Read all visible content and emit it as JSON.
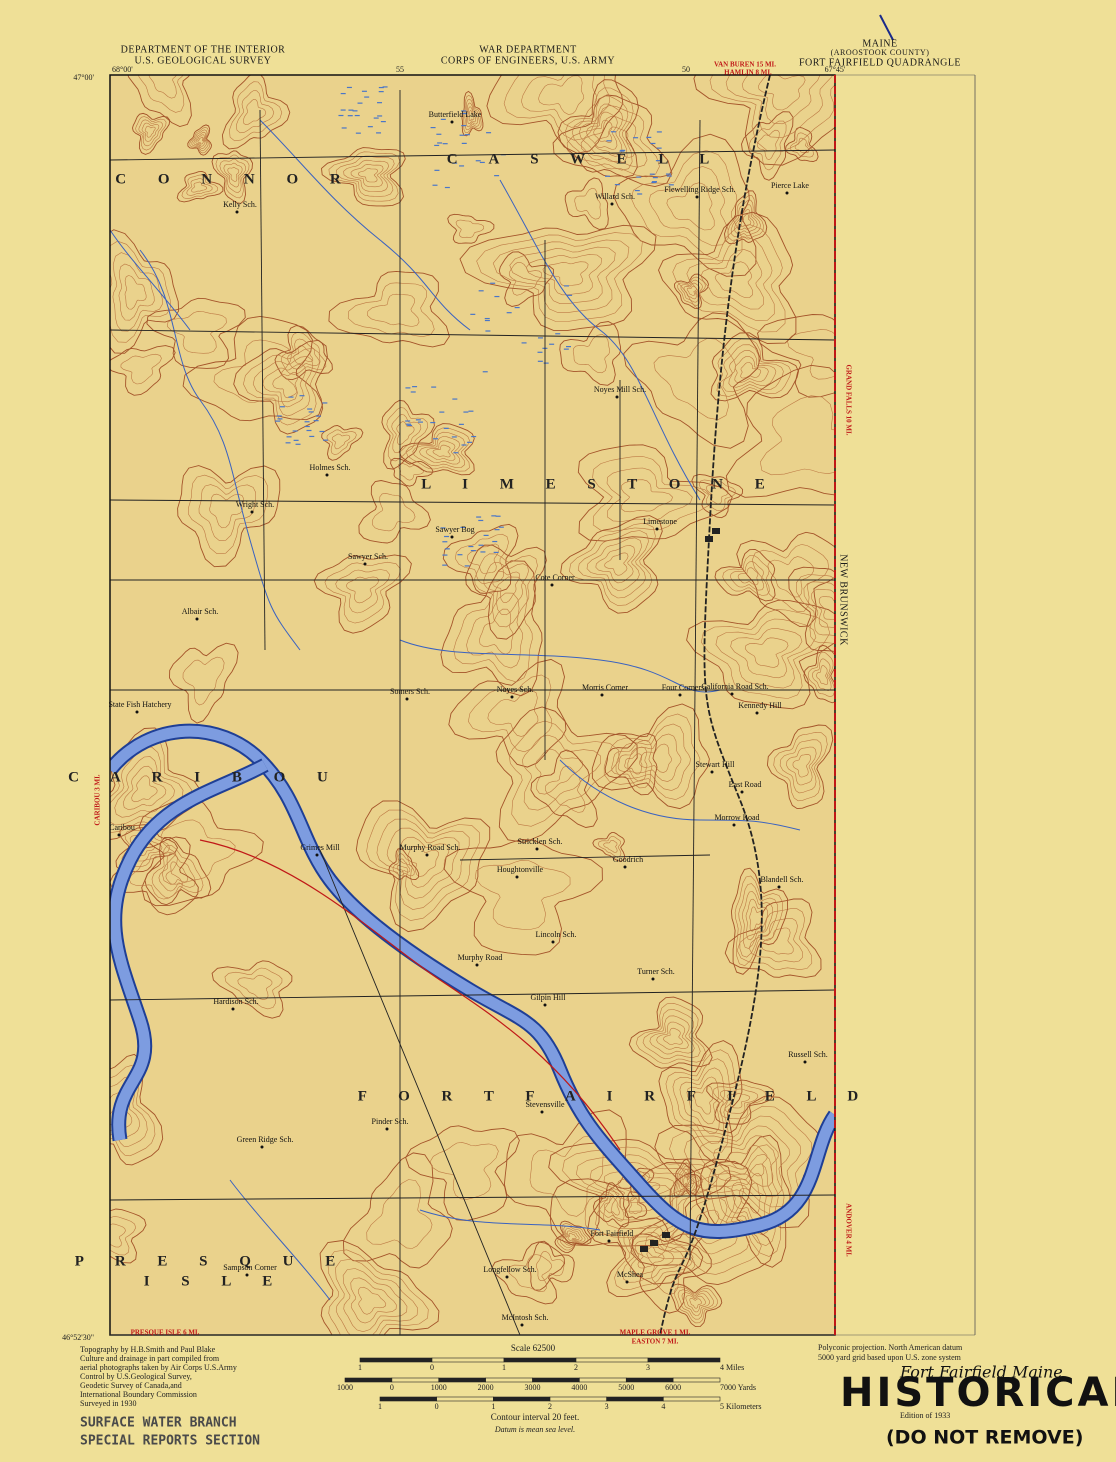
{
  "header": {
    "left": [
      "DEPARTMENT OF THE INTERIOR",
      "U.S. GEOLOGICAL SURVEY"
    ],
    "center": [
      "WAR DEPARTMENT",
      "CORPS OF ENGINEERS, U.S. ARMY"
    ],
    "right": [
      "MAINE",
      "(AROOSTOOK COUNTY)",
      "FORT FAIRFIELD QUADRANGLE"
    ]
  },
  "corners": [
    "68°00'",
    "47°00'",
    "67°45'",
    "46°52'30\"",
    "55",
    "50"
  ],
  "townships": [
    "C O N N O R",
    "C A S W E L L",
    "L I M E S T O N E",
    "C A R I B O U",
    "F O R T   F A I R F I E L D",
    "P R E S Q U E",
    "I S L E"
  ],
  "places": [
    "Butterfield Lake",
    "Kelly Sch.",
    "Willard Sch.",
    "Flewelling Ridge Sch.",
    "Pierce Lake",
    "Noyes Mill Sch.",
    "Holmes Sch.",
    "Wright Sch.",
    "Limestone",
    "Sawyer Sch.",
    "Sawyer Bog",
    "Cote Corner",
    "Albair Sch.",
    "State Fish Hatchery",
    "Somers Sch.",
    "Noyes Sch.",
    "Morris Corner",
    "Four Corners",
    "California Road Sch.",
    "Kennedy Hill",
    "Stewart Hill",
    "East Road",
    "Caribou",
    "Murphy Road Sch.",
    "Stricklen Sch.",
    "Goodrich",
    "Morrow Road",
    "Grimes Mill",
    "Houghtonville",
    "Blandell Sch.",
    "Lincoln Sch.",
    "Murphy Road",
    "Turner Sch.",
    "Gilpin Hill",
    "Hardison Sch.",
    "Russell Sch.",
    "Stevensville",
    "Green Ridge Sch.",
    "Pinder Sch.",
    "Fort Fairfield",
    "Sampson Corner",
    "McShea",
    "Longfellow Sch.",
    "McIntosh Sch."
  ],
  "road_notes": [
    "VAN BUREN 15 MI.",
    "HAMLIN 8 MI.",
    "GRAND FALLS 10 MI.",
    "CARIBOU 3 MI.",
    "PRESQUE ISLE 6 MI.",
    "MAPLE GROVE 1 MI.",
    "EASTON 7 MI.",
    "ANDOVER 4 MI.",
    "NEW BRUNSWICK"
  ],
  "footer": {
    "credits": [
      "Topography by H.B.Smith and Paul Blake",
      "Culture and drainage in part compiled from",
      "aerial photographs taken by Air Corps U.S.Army",
      "Control by U.S.Geological Survey,",
      "Geodetic Survey of Canada,and",
      "International Boundary Commission",
      "Surveyed in 1930"
    ],
    "scale": "Scale 62500",
    "miles": [
      "1",
      "0",
      "1",
      "2",
      "3",
      "4 Miles"
    ],
    "yards": [
      "1000",
      "0",
      "1000",
      "2000",
      "3000",
      "4000",
      "5000",
      "6000",
      "7000 Yards"
    ],
    "kilometers": [
      "1",
      "0",
      "1",
      "2",
      "3",
      "4",
      "5 Kilometers"
    ],
    "contour": "Contour interval 20 feet.",
    "datum": "Datum is mean sea level.",
    "projection": [
      "Polyconic projection. North American datum",
      "5000 yard grid based upon U.S. zone system"
    ],
    "edition": "Edition of 1933"
  },
  "stamps": {
    "branch": [
      "SURFACE WATER BRANCH",
      "SPECIAL REPORTS SECTION"
    ],
    "handwritten": "Fort Fairfield Maine",
    "files": "HISTORICAL FILES",
    "notice": "(DO NOT REMOVE)"
  }
}
